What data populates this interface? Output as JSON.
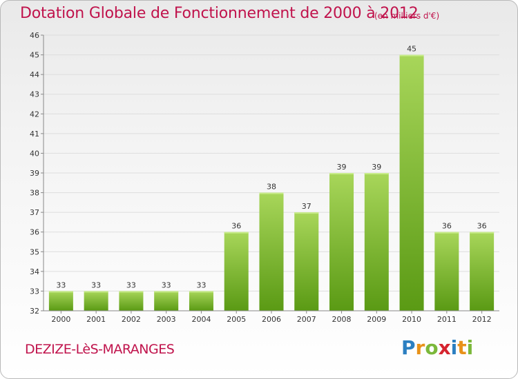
{
  "title": "Dotation Globale de Fonctionnement de 2000 à 2012",
  "unit_note": "(en milliers d'€)",
  "commune": "DEZIZE-LèS-MARANGES",
  "logo": {
    "letters": [
      "P",
      "r",
      "o",
      "x",
      "i",
      "t",
      "i"
    ],
    "colors": [
      "#2b7fc1",
      "#e8921a",
      "#7bb83a",
      "#d6242f",
      "#2b7fc1",
      "#e8921a",
      "#7bb83a"
    ]
  },
  "colors": {
    "title": "#c0134c",
    "bar_light": "#a8d65a",
    "bar_dark": "#5a9a14",
    "grid": "#dddddd",
    "axis": "#888888"
  },
  "chart_data": {
    "type": "bar",
    "title": "Dotation Globale de Fonctionnement de 2000 à 2012",
    "subtitle": "(en milliers d'€)",
    "xlabel": "",
    "ylabel": "",
    "categories": [
      "2000",
      "2001",
      "2002",
      "2003",
      "2004",
      "2005",
      "2006",
      "2007",
      "2008",
      "2009",
      "2010",
      "2011",
      "2012"
    ],
    "values": [
      33,
      33,
      33,
      33,
      33,
      36,
      38,
      37,
      39,
      39,
      45,
      36,
      36
    ],
    "ylim": [
      32,
      46
    ],
    "yticks": [
      32,
      33,
      34,
      35,
      36,
      37,
      38,
      39,
      40,
      41,
      42,
      43,
      44,
      45,
      46
    ],
    "grid": true,
    "legend": "none",
    "data_labels": true
  }
}
